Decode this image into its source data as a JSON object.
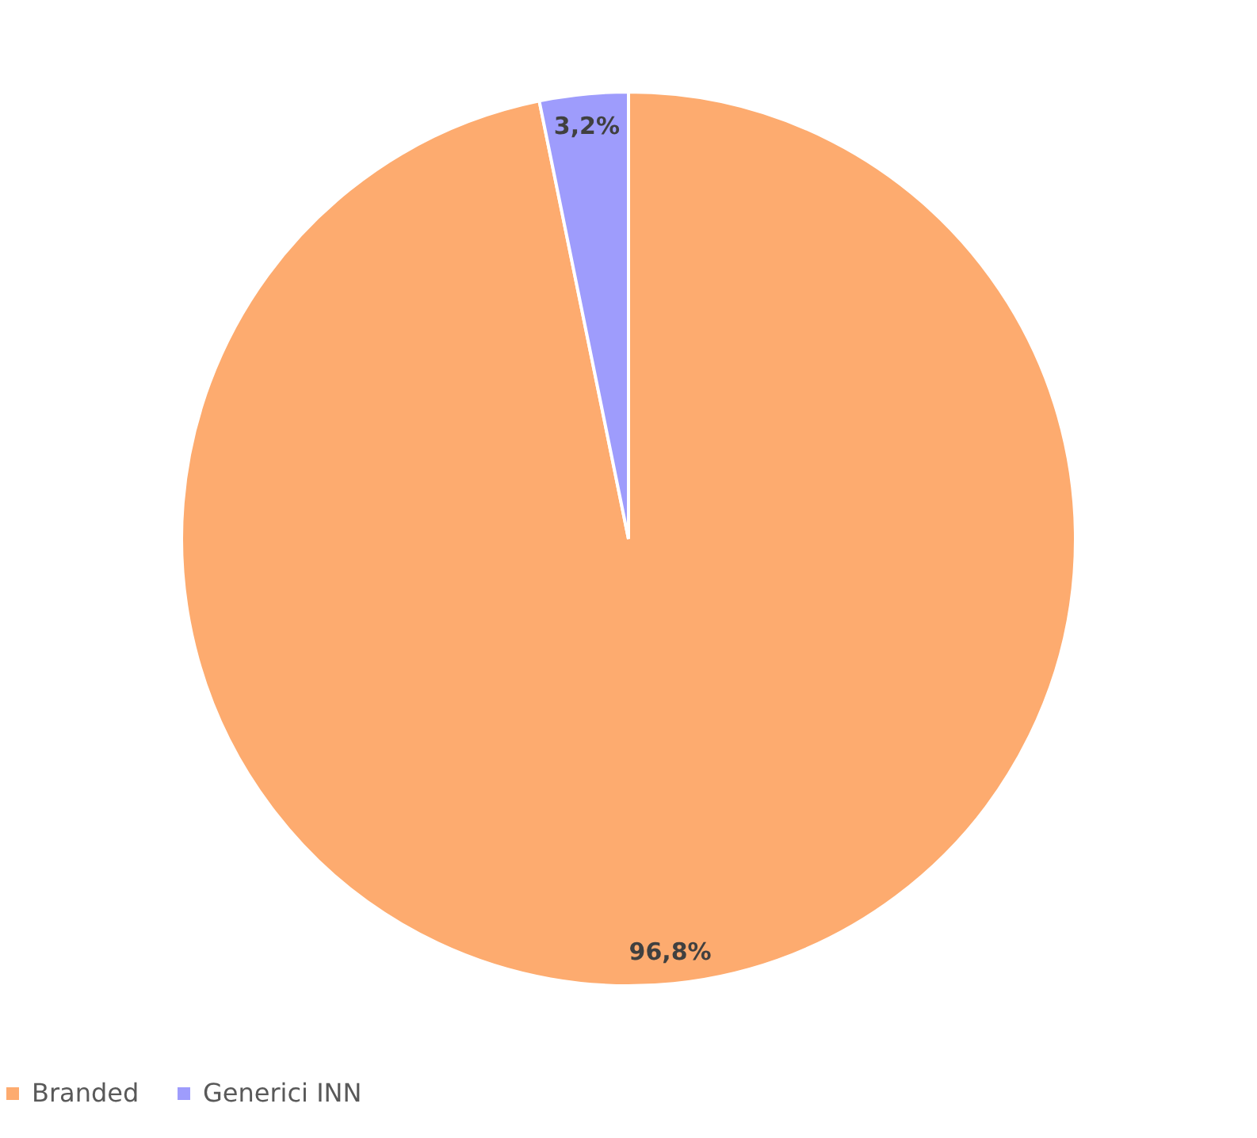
{
  "chart_data": {
    "type": "pie",
    "categories": [
      "Branded",
      "Generici INN"
    ],
    "values": [
      96.8,
      3.2
    ],
    "colors": [
      "#fdab6f",
      "#9e9cfc"
    ],
    "value_labels": [
      "96,8%",
      "3,2%"
    ],
    "legend": "bottom"
  }
}
